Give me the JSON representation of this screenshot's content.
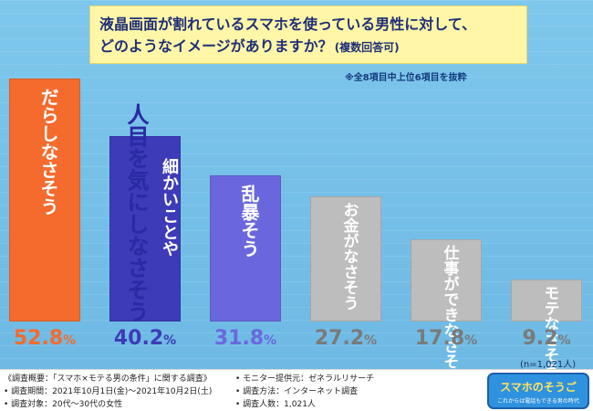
{
  "title": {
    "line1": "液晶画面が割れているスマホを使っている男性に対して、",
    "line2": "どのようなイメージがありますか？",
    "note": "(複数回答可)"
  },
  "subnote": "※全8項目中上位6項目を抜粋",
  "n_label": "(n=1,021人)",
  "chart_data": {
    "type": "bar",
    "categories": [
      "だらしなさそう",
      "人目を気にしなさそう 細かいことや",
      "乱暴そう",
      "お金がなさそう",
      "仕事ができなさそう",
      "モテなさそう"
    ],
    "values": [
      52.8,
      40.2,
      31.8,
      27.2,
      17.8,
      9.2
    ],
    "colors": [
      "#f46b2d",
      "#3d3bb8",
      "#6a67de",
      "#bdbdbd",
      "#bdbdbd",
      "#bdbdbd"
    ],
    "value_colors": [
      "#f46b2d",
      "#3d3bb8",
      "#6a67de",
      "#7a7a7a",
      "#7a7a7a",
      "#7a7a7a"
    ],
    "unit": "%",
    "ylim": [
      0,
      60
    ],
    "grid": false
  },
  "bar_labels": [
    {
      "main": "だらしなさそう"
    },
    {
      "main": "人目を気にしなさそう",
      "sub": "細かいことや"
    },
    {
      "main": "乱暴そう"
    },
    {
      "main": "お金がなさそう"
    },
    {
      "main": "仕事ができなさそう"
    },
    {
      "main": "モテなさそう"
    }
  ],
  "value_labels": [
    {
      "num": "52.8",
      "pct": "%"
    },
    {
      "num": "40.2",
      "pct": "%"
    },
    {
      "num": "31.8",
      "pct": "%"
    },
    {
      "num": "27.2",
      "pct": "%"
    },
    {
      "num": "17.8",
      "pct": "%"
    },
    {
      "num": "9.2",
      "pct": "%"
    }
  ],
  "footer": {
    "line1": "《調査概要：「スマホ×モテる男の条件」に関する調査》",
    "line2": "• 調査期間：2021年10月1日(金)～2021年10月2日(土)",
    "line3": "• 調査対象：20代～30代の女性",
    "line4": "• 調査方法：インターネット調査",
    "line5": "• 調査人数：1,021人",
    "line6": "• モニター提供元：ゼネラルリサーチ"
  },
  "logo": {
    "text": "スマホのそうご",
    "sub": "これからは電話もできる男の時代"
  }
}
